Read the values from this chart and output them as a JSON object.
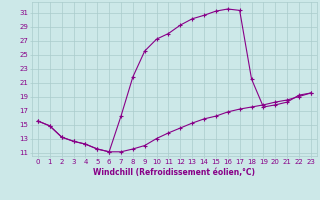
{
  "xlabel": "Windchill (Refroidissement éolien,°C)",
  "background_color": "#cce8e8",
  "line_color": "#880088",
  "grid_color": "#aacccc",
  "x_data": [
    0,
    1,
    2,
    3,
    4,
    5,
    6,
    7,
    8,
    9,
    10,
    11,
    12,
    13,
    14,
    15,
    16,
    17,
    18,
    19,
    20,
    21,
    22,
    23
  ],
  "y_data": [
    15.5,
    14.8,
    13.2,
    12.6,
    12.2,
    11.5,
    11.1,
    16.2,
    21.8,
    25.5,
    27.2,
    28.0,
    29.2,
    30.1,
    30.6,
    31.2,
    31.5,
    31.3,
    21.5,
    17.5,
    17.8,
    18.2,
    19.2,
    19.5
  ],
  "y2_data": [
    15.5,
    14.8,
    13.2,
    12.6,
    12.2,
    11.5,
    11.1,
    11.1,
    11.5,
    12.0,
    13.0,
    13.8,
    14.5,
    15.2,
    15.8,
    16.2,
    16.8,
    17.2,
    17.5,
    17.8,
    18.2,
    18.5,
    19.0,
    19.5
  ],
  "xlim": [
    -0.5,
    23.5
  ],
  "ylim": [
    10.5,
    32.5
  ],
  "yticks": [
    11,
    13,
    15,
    17,
    19,
    21,
    23,
    25,
    27,
    29,
    31
  ],
  "xticks": [
    0,
    1,
    2,
    3,
    4,
    5,
    6,
    7,
    8,
    9,
    10,
    11,
    12,
    13,
    14,
    15,
    16,
    17,
    18,
    19,
    20,
    21,
    22,
    23
  ],
  "tick_fontsize": 5.0,
  "xlabel_fontsize": 5.5,
  "marker_size": 3.5,
  "linewidth": 0.8
}
